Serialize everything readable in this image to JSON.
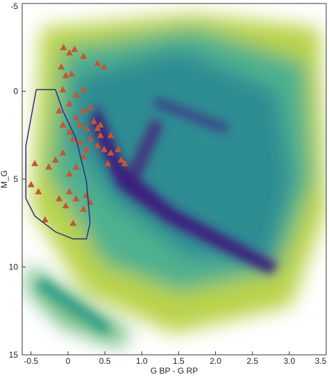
{
  "chart_data": {
    "type": "scatter",
    "x_label": "G BP - G RP",
    "y_label": "M_G",
    "xlim": [
      -0.62,
      3.5
    ],
    "ylim": [
      -5,
      15
    ],
    "y_inverted": true,
    "xticks": [
      -0.5,
      0,
      0.5,
      {
        "value": 1,
        "label": "1.0"
      },
      1.5,
      {
        "value": 2,
        "label": "2.0"
      },
      2.5,
      {
        "value": 3,
        "label": "3.0"
      },
      3.5
    ],
    "yticks": [
      -5,
      0,
      5,
      10,
      15
    ],
    "series": [
      {
        "kind": "triangles",
        "color": "#c9552f",
        "x": [
          -0.06,
          0.02,
          0.09,
          0.21,
          0.49,
          0.4,
          -0.09,
          -0.03,
          0.05,
          -0.12,
          -0.07,
          0.02,
          0.07,
          0.11,
          0.16,
          0.25,
          0.35,
          0.3,
          0.4,
          0.44,
          0.49,
          0.58,
          0.68,
          0.72,
          0.77,
          0.54,
          0.21,
          0.11,
          0.02,
          -0.17,
          -0.26,
          -0.45,
          -0.5,
          -0.4,
          -0.12,
          0.02,
          0.11,
          0.21,
          0.25,
          0.3,
          -0.03,
          -0.31,
          0.07,
          -0.07,
          0.16,
          0.25,
          0.4,
          0.21,
          0.02,
          0.3,
          0.44,
          0.58,
          0.21,
          -0.07,
          0.11
        ],
        "y": [
          -2.5,
          -2.2,
          -2.4,
          -2.0,
          -1.4,
          -1.6,
          -1.4,
          -0.9,
          -1.0,
          1.1,
          1.9,
          2.3,
          2.7,
          1.5,
          1.9,
          2.1,
          1.7,
          2.7,
          3.1,
          2.5,
          3.3,
          3.5,
          3.3,
          3.9,
          4.1,
          4.1,
          3.7,
          4.3,
          4.7,
          3.9,
          4.3,
          4.1,
          5.3,
          5.7,
          6.1,
          5.7,
          6.1,
          6.7,
          5.9,
          6.3,
          6.5,
          7.3,
          7.5,
          3.5,
          2.9,
          3.3,
          2.1,
          1.1,
          0.7,
          0.9,
          1.9,
          2.5,
          -0.1,
          -0.1,
          0.2
        ]
      },
      {
        "kind": "polygon",
        "color": "#2b2b8c",
        "x": [
          -0.43,
          -0.17,
          -0.07,
          0.11,
          0.25,
          0.3,
          0.25,
          0.07,
          -0.17,
          -0.45,
          -0.57,
          -0.57,
          -0.43
        ],
        "y": [
          -0.1,
          -0.1,
          1.1,
          2.7,
          5.1,
          7.5,
          8.4,
          8.4,
          8.0,
          7.1,
          6.1,
          3.1,
          -0.1
        ]
      }
    ]
  }
}
